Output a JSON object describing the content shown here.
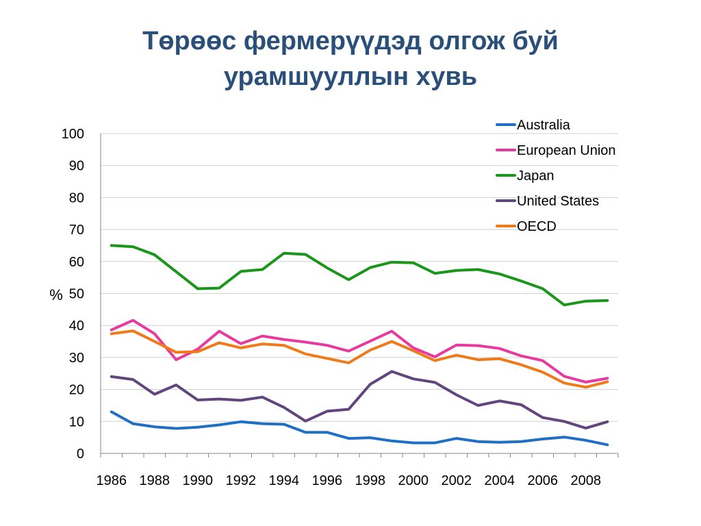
{
  "slide": {
    "title_line1": "Төрөөс фермерүүдэд олгож буй",
    "title_line2": "урамшууллын хувь"
  },
  "chart_data": {
    "type": "line",
    "title": "Төрөөс фермерүүдэд олгож буй урамшууллын хувь",
    "xlabel": "",
    "ylabel": "%",
    "ylim": [
      0,
      100
    ],
    "yticks": [
      0,
      10,
      20,
      30,
      40,
      50,
      60,
      70,
      80,
      90,
      100
    ],
    "x": [
      1986,
      1987,
      1988,
      1989,
      1990,
      1991,
      1992,
      1993,
      1994,
      1995,
      1996,
      1997,
      1998,
      1999,
      2000,
      2001,
      2002,
      2003,
      2004,
      2005,
      2006,
      2007,
      2008,
      2009
    ],
    "xtick_labels": [
      "1986",
      "1988",
      "1990",
      "1992",
      "1994",
      "1996",
      "1998",
      "2000",
      "2002",
      "2004",
      "2006",
      "2008"
    ],
    "grid": true,
    "legend_position": "top-right",
    "series": [
      {
        "name": "Australia",
        "color": "#1f6fc5",
        "values": [
          13.0,
          9.3,
          8.3,
          7.8,
          8.2,
          8.9,
          9.9,
          9.3,
          9.1,
          6.6,
          6.6,
          4.7,
          4.9,
          3.9,
          3.3,
          3.3,
          4.7,
          3.7,
          3.5,
          3.7,
          4.5,
          5.1,
          4.1,
          2.7
        ]
      },
      {
        "name": "European Union",
        "color": "#e8399f",
        "values": [
          38.6,
          41.6,
          37.4,
          29.3,
          32.6,
          38.2,
          34.3,
          36.7,
          35.6,
          34.8,
          33.8,
          32.0,
          35.1,
          38.2,
          33.0,
          30.2,
          33.9,
          33.7,
          32.8,
          30.5,
          29.0,
          24.1,
          22.3,
          23.5
        ]
      },
      {
        "name": "Japan",
        "color": "#1a961a",
        "values": [
          65.0,
          64.6,
          62.1,
          56.8,
          51.5,
          51.7,
          56.9,
          57.5,
          62.6,
          62.2,
          58.0,
          54.3,
          58.1,
          59.8,
          59.6,
          56.3,
          57.2,
          57.5,
          56.1,
          53.9,
          51.5,
          46.4,
          47.6,
          47.8
        ]
      },
      {
        "name": "United States",
        "color": "#61467d",
        "values": [
          24.0,
          23.1,
          18.5,
          21.4,
          16.7,
          17.0,
          16.6,
          17.6,
          14.4,
          10.1,
          13.2,
          13.8,
          21.6,
          25.6,
          23.3,
          22.2,
          18.3,
          15.0,
          16.4,
          15.2,
          11.2,
          10.0,
          7.9,
          9.9
        ]
      },
      {
        "name": "OECD",
        "color": "#f07a1a",
        "values": [
          37.4,
          38.3,
          35.0,
          31.6,
          31.8,
          34.6,
          33.0,
          34.2,
          33.8,
          31.1,
          29.7,
          28.3,
          32.3,
          35.0,
          32.1,
          29.0,
          30.7,
          29.3,
          29.6,
          27.7,
          25.4,
          22.0,
          20.7,
          22.4
        ]
      }
    ]
  }
}
